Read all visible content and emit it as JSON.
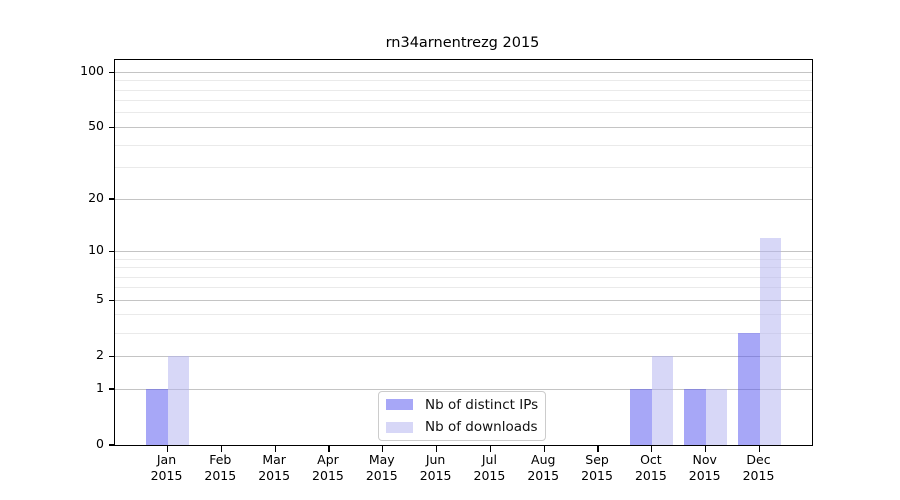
{
  "figure_title": "rn34arnentrezg 2015",
  "chart_data": {
    "type": "bar",
    "title": "rn34arnentrezg 2015",
    "categories": [
      "Jan 2015",
      "Feb 2015",
      "Mar 2015",
      "Apr 2015",
      "May 2015",
      "Jun 2015",
      "Jul 2015",
      "Aug 2015",
      "Sep 2015",
      "Oct 2015",
      "Nov 2015",
      "Dec 2015"
    ],
    "x_tick_months": [
      "Jan",
      "Feb",
      "Mar",
      "Apr",
      "May",
      "Jun",
      "Jul",
      "Aug",
      "Sep",
      "Oct",
      "Nov",
      "Dec"
    ],
    "x_tick_year": "2015",
    "series": [
      {
        "name": "Nb of distinct IPs",
        "color": "rgba(80,80,240,0.5)",
        "solid_color": "#a8a8f8",
        "values": [
          1,
          0,
          0,
          0,
          0,
          0,
          0,
          0,
          0,
          1,
          1,
          3
        ]
      },
      {
        "name": "Nb of downloads",
        "color": "rgba(176,176,240,0.5)",
        "solid_color": "#d8d8f8",
        "values": [
          2,
          0,
          0,
          0,
          0,
          0,
          0,
          0,
          0,
          2,
          1,
          12
        ]
      }
    ],
    "yscale": "log1p",
    "ylim": [
      0,
      117
    ],
    "yticks_major": [
      0,
      1,
      2,
      5,
      10,
      20,
      50,
      100
    ],
    "yticks_minor": [
      3,
      4,
      6,
      7,
      8,
      9,
      30,
      40,
      60,
      70,
      80,
      90
    ],
    "grid": true,
    "grid_major_color": "#c4c4c4",
    "grid_minor_color": "#eaeaea",
    "axis_color": "#000000",
    "legend_position": "lower center"
  }
}
